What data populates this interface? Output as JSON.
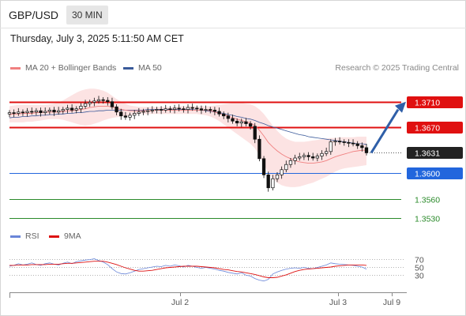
{
  "header": {
    "pair": "GBP/USD",
    "timeframe": "30 MIN"
  },
  "datetime": "Thursday, July 3, 2025 5:11:50 AM CET",
  "legend": {
    "ma20": {
      "label": "MA 20 + Bollinger Bands",
      "color": "#f08080"
    },
    "ma50": {
      "label": "MA 50",
      "color": "#3a5a9a"
    },
    "credit": "Research © 2025 Trading Central"
  },
  "rsi_legend": {
    "rsi": {
      "label": "RSI",
      "color": "#6a86d8"
    },
    "ma9": {
      "label": "9MA",
      "color": "#dd1111"
    }
  },
  "chart_data": {
    "type": "candlestick",
    "instrument": "GBP/USD",
    "interval": "30 MIN",
    "ylim": [
      1.3523,
      1.3745
    ],
    "levels": [
      {
        "value": 1.371,
        "label": "1.3710",
        "style": "resistance",
        "color": "#e01010"
      },
      {
        "value": 1.367,
        "label": "1.3670",
        "style": "resistance",
        "color": "#e01010"
      },
      {
        "value": 1.3631,
        "label": "1.3631",
        "style": "last",
        "color": "#222222"
      },
      {
        "value": 1.36,
        "label": "1.3600",
        "style": "pivot",
        "color": "#2266dd"
      },
      {
        "value": 1.356,
        "label": "1.3560",
        "style": "support",
        "color": "#2a8a2a"
      },
      {
        "value": 1.353,
        "label": "1.3530",
        "style": "support",
        "color": "#2a8a2a"
      }
    ],
    "x_ticks": [
      "Jul 2",
      "Jul 3",
      "Jul 9"
    ],
    "forecast_arrow": {
      "from": 1.3631,
      "to": 1.371,
      "color": "#2f5fa8"
    },
    "close": [
      1.3693,
      1.3692,
      1.3694,
      1.3693,
      1.3695,
      1.3694,
      1.3696,
      1.3693,
      1.3695,
      1.3697,
      1.3694,
      1.3696,
      1.3698,
      1.37,
      1.3697,
      1.3699,
      1.3703,
      1.3707,
      1.3709,
      1.3711,
      1.3713,
      1.3712,
      1.371,
      1.3702,
      1.3694,
      1.3688,
      1.3686,
      1.3689,
      1.3692,
      1.3694,
      1.3695,
      1.3696,
      1.3697,
      1.3698,
      1.3697,
      1.3699,
      1.3698,
      1.37,
      1.3699,
      1.3698,
      1.3701,
      1.37,
      1.3699,
      1.3697,
      1.3698,
      1.3697,
      1.3695,
      1.3691,
      1.3688,
      1.3684,
      1.368,
      1.3677,
      1.3679,
      1.3676,
      1.3672,
      1.3652,
      1.3622,
      1.3597,
      1.3577,
      1.3591,
      1.3597,
      1.3605,
      1.3613,
      1.3619,
      1.3623,
      1.3625,
      1.3627,
      1.3625,
      1.3623,
      1.3626,
      1.363,
      1.3633,
      1.3648,
      1.3649,
      1.3648,
      1.3647,
      1.3646,
      1.3645,
      1.3642,
      1.3639,
      1.3631
    ],
    "ma20": [
      1.369,
      1.3691,
      1.3691,
      1.3692,
      1.3692,
      1.3692,
      1.3693,
      1.3693,
      1.3694,
      1.3694,
      1.3694,
      1.3694,
      1.3695,
      1.3696,
      1.3696,
      1.3697,
      1.3698,
      1.3699,
      1.3701,
      1.3702,
      1.3703,
      1.3703,
      1.3703,
      1.3702,
      1.37,
      1.3698,
      1.3697,
      1.3696,
      1.3696,
      1.3696,
      1.3696,
      1.3696,
      1.3696,
      1.3697,
      1.3697,
      1.3697,
      1.3697,
      1.3697,
      1.3697,
      1.3697,
      1.3697,
      1.3697,
      1.3697,
      1.3697,
      1.3697,
      1.3696,
      1.3694,
      1.3692,
      1.369,
      1.3688,
      1.3685,
      1.3683,
      1.3681,
      1.3679,
      1.3677,
      1.3673,
      1.3666,
      1.3657,
      1.3647,
      1.364,
      1.3634,
      1.3629,
      1.3625,
      1.3622,
      1.3619,
      1.3617,
      1.3616,
      1.3615,
      1.3615,
      1.3616,
      1.3617,
      1.3619,
      1.3622,
      1.3625,
      1.3627,
      1.3629,
      1.3631,
      1.3633,
      1.3634,
      1.3635,
      1.3635
    ],
    "ma50": [
      1.3685,
      1.3686,
      1.3686,
      1.3687,
      1.3687,
      1.3688,
      1.3688,
      1.3689,
      1.3689,
      1.369,
      1.369,
      1.3691,
      1.3691,
      1.3692,
      1.3692,
      1.3693,
      1.3693,
      1.3694,
      1.3695,
      1.3695,
      1.3696,
      1.3696,
      1.3697,
      1.3697,
      1.3697,
      1.3697,
      1.3697,
      1.3697,
      1.3697,
      1.3697,
      1.3697,
      1.3698,
      1.3698,
      1.3698,
      1.3698,
      1.3698,
      1.3698,
      1.3698,
      1.3698,
      1.3698,
      1.3698,
      1.3698,
      1.3697,
      1.3697,
      1.3696,
      1.3695,
      1.3694,
      1.3693,
      1.3692,
      1.369,
      1.3689,
      1.3687,
      1.3686,
      1.3684,
      1.3683,
      1.3681,
      1.3678,
      1.3676,
      1.3673,
      1.3671,
      1.3669,
      1.3667,
      1.3665,
      1.3663,
      1.3661,
      1.3659,
      1.3658,
      1.3656,
      1.3655,
      1.3654,
      1.3653,
      1.3652,
      1.3651,
      1.365,
      1.3649,
      1.3648,
      1.3647,
      1.3646,
      1.3645,
      1.3645,
      1.3644
    ],
    "bb_upper": [
      1.3703,
      1.3704,
      1.3705,
      1.3705,
      1.3705,
      1.3705,
      1.3705,
      1.3705,
      1.3705,
      1.3706,
      1.3707,
      1.3709,
      1.3712,
      1.3716,
      1.372,
      1.3724,
      1.3727,
      1.3729,
      1.373,
      1.373,
      1.3729,
      1.3727,
      1.3724,
      1.3719,
      1.3714,
      1.371,
      1.3707,
      1.3704,
      1.3703,
      1.3702,
      1.3702,
      1.3702,
      1.3702,
      1.3702,
      1.3702,
      1.3702,
      1.3702,
      1.3702,
      1.3703,
      1.3703,
      1.3703,
      1.3703,
      1.3703,
      1.3703,
      1.3703,
      1.3703,
      1.3704,
      1.3705,
      1.3706,
      1.3707,
      1.3708,
      1.3708,
      1.3708,
      1.3707,
      1.3706,
      1.3703,
      1.3698,
      1.3691,
      1.3682,
      1.3673,
      1.3665,
      1.3658,
      1.3653,
      1.365,
      1.3648,
      1.3648,
      1.3648,
      1.3649,
      1.365,
      1.3651,
      1.3652,
      1.3653,
      1.3654,
      1.3654,
      1.3655,
      1.3655,
      1.3655,
      1.3655,
      1.3656,
      1.3656,
      1.3656
    ],
    "bb_lower": [
      1.3678,
      1.3678,
      1.3678,
      1.3678,
      1.3679,
      1.3679,
      1.368,
      1.3681,
      1.3682,
      1.3683,
      1.3683,
      1.3683,
      1.3682,
      1.368,
      1.3678,
      1.3676,
      1.3674,
      1.3673,
      1.3674,
      1.3676,
      1.3678,
      1.3681,
      1.3683,
      1.3685,
      1.3686,
      1.3687,
      1.3688,
      1.3689,
      1.369,
      1.3691,
      1.3691,
      1.3691,
      1.3691,
      1.3691,
      1.3691,
      1.3691,
      1.3691,
      1.3691,
      1.3691,
      1.3691,
      1.3691,
      1.3691,
      1.3691,
      1.369,
      1.3689,
      1.3687,
      1.3684,
      1.368,
      1.3675,
      1.367,
      1.3665,
      1.366,
      1.3655,
      1.365,
      1.3645,
      1.3638,
      1.3627,
      1.3614,
      1.36,
      1.3591,
      1.3585,
      1.3581,
      1.3579,
      1.3578,
      1.3578,
      1.3579,
      1.3581,
      1.3583,
      1.3585,
      1.3588,
      1.3591,
      1.3594,
      1.3598,
      1.3602,
      1.3605,
      1.3607,
      1.3608,
      1.3609,
      1.361,
      1.3611,
      1.3612
    ],
    "rsi": {
      "ylim": [
        0,
        100
      ],
      "ticks": [
        70,
        50,
        30
      ],
      "rsi": [
        52,
        54,
        58,
        55,
        57,
        60,
        56,
        54,
        58,
        60,
        57,
        55,
        59,
        62,
        58,
        63,
        65,
        67,
        68,
        70,
        66,
        62,
        56,
        46,
        38,
        34,
        33,
        36,
        40,
        44,
        46,
        48,
        50,
        52,
        51,
        54,
        52,
        55,
        53,
        50,
        54,
        52,
        49,
        47,
        49,
        47,
        45,
        42,
        40,
        37,
        35,
        33,
        36,
        30,
        28,
        22,
        18,
        16,
        20,
        33,
        38,
        42,
        45,
        47,
        48,
        47,
        49,
        47,
        46,
        49,
        52,
        55,
        60,
        58,
        57,
        56,
        55,
        54,
        52,
        50,
        45
      ],
      "ma9": [
        54,
        54,
        55,
        55,
        55,
        56,
        56,
        56,
        56,
        57,
        57,
        57,
        58,
        59,
        59,
        60,
        61,
        62,
        63,
        64,
        64,
        64,
        62,
        59,
        56,
        52,
        48,
        45,
        42,
        40,
        40,
        41,
        42,
        44,
        46,
        48,
        49,
        50,
        51,
        52,
        52,
        52,
        52,
        51,
        50,
        49,
        48,
        46,
        44,
        43,
        41,
        39,
        38,
        36,
        34,
        32,
        29,
        26,
        24,
        24,
        25,
        28,
        31,
        35,
        39,
        42,
        44,
        45,
        46,
        47,
        48,
        49,
        50,
        52,
        53,
        54,
        55,
        55,
        55,
        55,
        54
      ]
    }
  }
}
